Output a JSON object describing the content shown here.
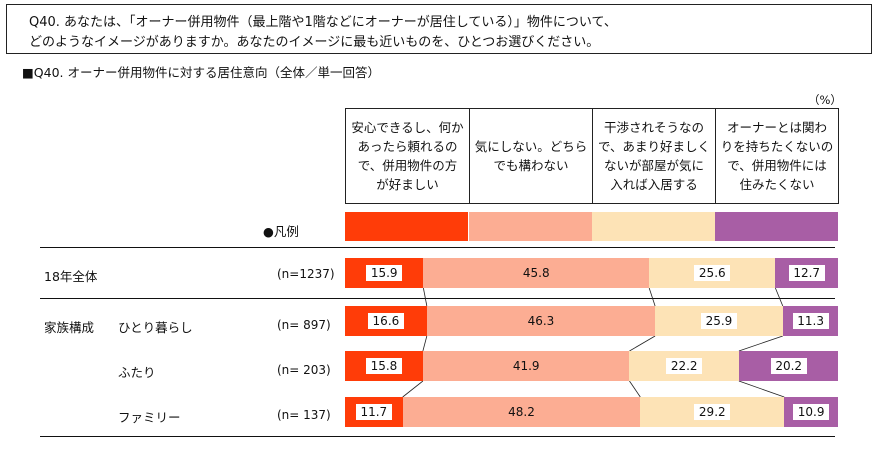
{
  "question": {
    "line1": "Q40. あなたは、「オーナー併用物件（最上階や1階などにオーナーが居住している）」物件について、",
    "line2": "どのようなイメージがありますか。あなたのイメージに最も近いものを、ひとつお選びください。"
  },
  "subtitle": "■Q40. オーナー併用物件に対する居住意向（全体／単一回答）",
  "unit": "（%）",
  "legend_label": "●凡例",
  "colors": [
    "#ff3c08",
    "#fcad93",
    "#fde3b6",
    "#a85ea5"
  ],
  "chart_data": {
    "type": "bar",
    "stacked": true,
    "orientation": "horizontal",
    "percent": true,
    "series": [
      {
        "name": [
          "安心できるし、何か",
          "あったら頼れるの",
          "で、併用物件の方",
          "が好ましい"
        ],
        "color": "#ff3c08",
        "values": [
          15.9,
          16.6,
          15.8,
          11.7
        ]
      },
      {
        "name": [
          "気にしない。どちら",
          "でも構わない"
        ],
        "color": "#fcad93",
        "values": [
          45.8,
          46.3,
          41.9,
          48.2
        ]
      },
      {
        "name": [
          "干渉されそうなの",
          "で、あまり好ましく",
          "ないが部屋が気に",
          "入れば入居する"
        ],
        "color": "#fde3b6",
        "values": [
          25.6,
          25.9,
          22.2,
          29.2
        ]
      },
      {
        "name": [
          "オーナーとは関わ",
          "りを持ちたくないの",
          "で、併用物件には",
          "住みたくない"
        ],
        "color": "#a85ea5",
        "values": [
          12.7,
          11.3,
          20.2,
          10.9
        ]
      }
    ],
    "rows": [
      {
        "group": "18年全体",
        "label": "",
        "n": "(n=1237)"
      },
      {
        "group": "家族構成",
        "label": "ひとり暮らし",
        "n": "(n=  897)"
      },
      {
        "group": "",
        "label": "ふたり",
        "n": "(n=  203)"
      },
      {
        "group": "",
        "label": "ファミリー",
        "n": "(n=  137)"
      }
    ]
  }
}
